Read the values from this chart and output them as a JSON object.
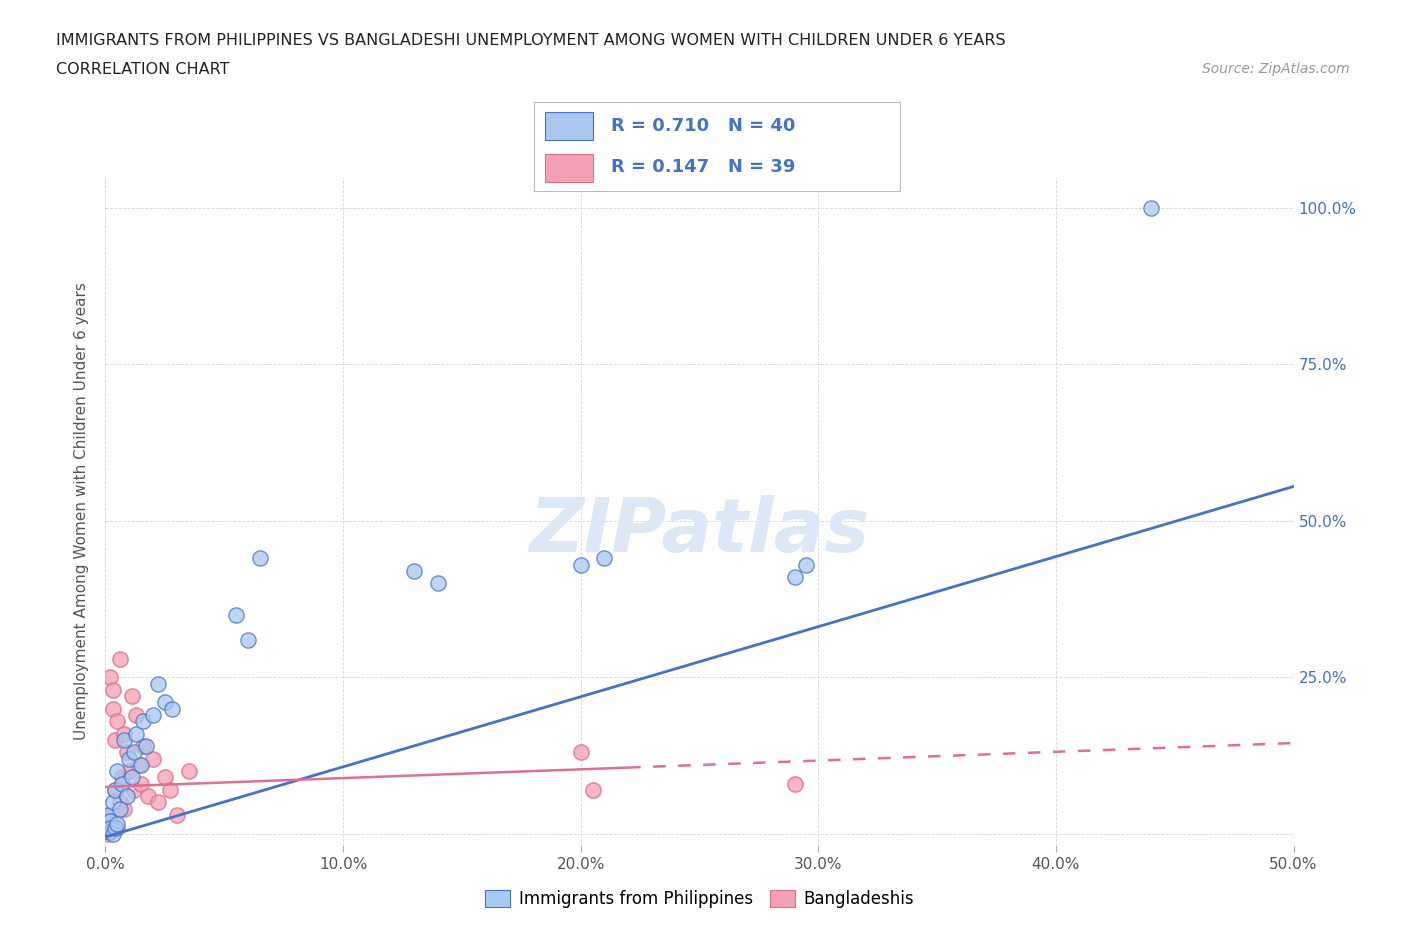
{
  "title_line1": "IMMIGRANTS FROM PHILIPPINES VS BANGLADESHI UNEMPLOYMENT AMONG WOMEN WITH CHILDREN UNDER 6 YEARS",
  "title_line2": "CORRELATION CHART",
  "source_text": "Source: ZipAtlas.com",
  "ylabel": "Unemployment Among Women with Children Under 6 years",
  "xlim": [
    0.0,
    0.5
  ],
  "ylim": [
    -0.02,
    1.05
  ],
  "grid_color": "#cccccc",
  "background_color": "#ffffff",
  "watermark": "ZIPatlas",
  "legend_R1": "R = 0.710",
  "legend_N1": "N = 40",
  "legend_R2": "R = 0.147",
  "legend_N2": "N = 39",
  "color_blue": "#a8c8f0",
  "color_pink": "#f4a0b5",
  "line_color_blue": "#4472c4",
  "line_color_pink": "#e07090",
  "philippines_x": [
    0.0,
    0.0,
    0.0,
    0.001,
    0.001,
    0.001,
    0.002,
    0.002,
    0.002,
    0.003,
    0.003,
    0.004,
    0.004,
    0.005,
    0.005,
    0.006,
    0.007,
    0.008,
    0.009,
    0.01,
    0.011,
    0.012,
    0.013,
    0.015,
    0.016,
    0.017,
    0.02,
    0.022,
    0.025,
    0.028,
    0.055,
    0.06,
    0.065,
    0.13,
    0.14,
    0.2,
    0.21,
    0.29,
    0.295,
    0.44
  ],
  "philippines_y": [
    0.01,
    0.02,
    0.005,
    0.015,
    0.03,
    0.01,
    0.005,
    0.02,
    0.01,
    0.0,
    0.05,
    0.01,
    0.07,
    0.015,
    0.1,
    0.04,
    0.08,
    0.15,
    0.06,
    0.12,
    0.09,
    0.13,
    0.16,
    0.11,
    0.18,
    0.14,
    0.19,
    0.24,
    0.21,
    0.2,
    0.35,
    0.31,
    0.44,
    0.42,
    0.4,
    0.43,
    0.44,
    0.41,
    0.43,
    1.0
  ],
  "bangladesh_x": [
    0.0,
    0.0,
    0.0,
    0.001,
    0.001,
    0.001,
    0.002,
    0.002,
    0.002,
    0.003,
    0.003,
    0.003,
    0.004,
    0.004,
    0.005,
    0.005,
    0.006,
    0.006,
    0.007,
    0.008,
    0.008,
    0.009,
    0.01,
    0.011,
    0.012,
    0.013,
    0.014,
    0.015,
    0.016,
    0.018,
    0.02,
    0.022,
    0.025,
    0.027,
    0.03,
    0.035,
    0.2,
    0.205,
    0.29
  ],
  "bangladesh_y": [
    0.01,
    0.02,
    0.005,
    0.0,
    0.015,
    0.03,
    0.005,
    0.02,
    0.25,
    0.01,
    0.2,
    0.23,
    0.15,
    0.07,
    0.18,
    0.01,
    0.28,
    0.05,
    0.09,
    0.16,
    0.04,
    0.13,
    0.1,
    0.22,
    0.07,
    0.19,
    0.11,
    0.08,
    0.14,
    0.06,
    0.12,
    0.05,
    0.09,
    0.07,
    0.03,
    0.1,
    0.13,
    0.07,
    0.08
  ],
  "phil_line_x0": 0.0,
  "phil_line_x1": 0.5,
  "phil_line_y0": -0.005,
  "phil_line_y1": 0.555,
  "bang_line_x0": 0.0,
  "bang_line_x1": 0.5,
  "bang_line_y0": 0.075,
  "bang_line_y1": 0.145
}
